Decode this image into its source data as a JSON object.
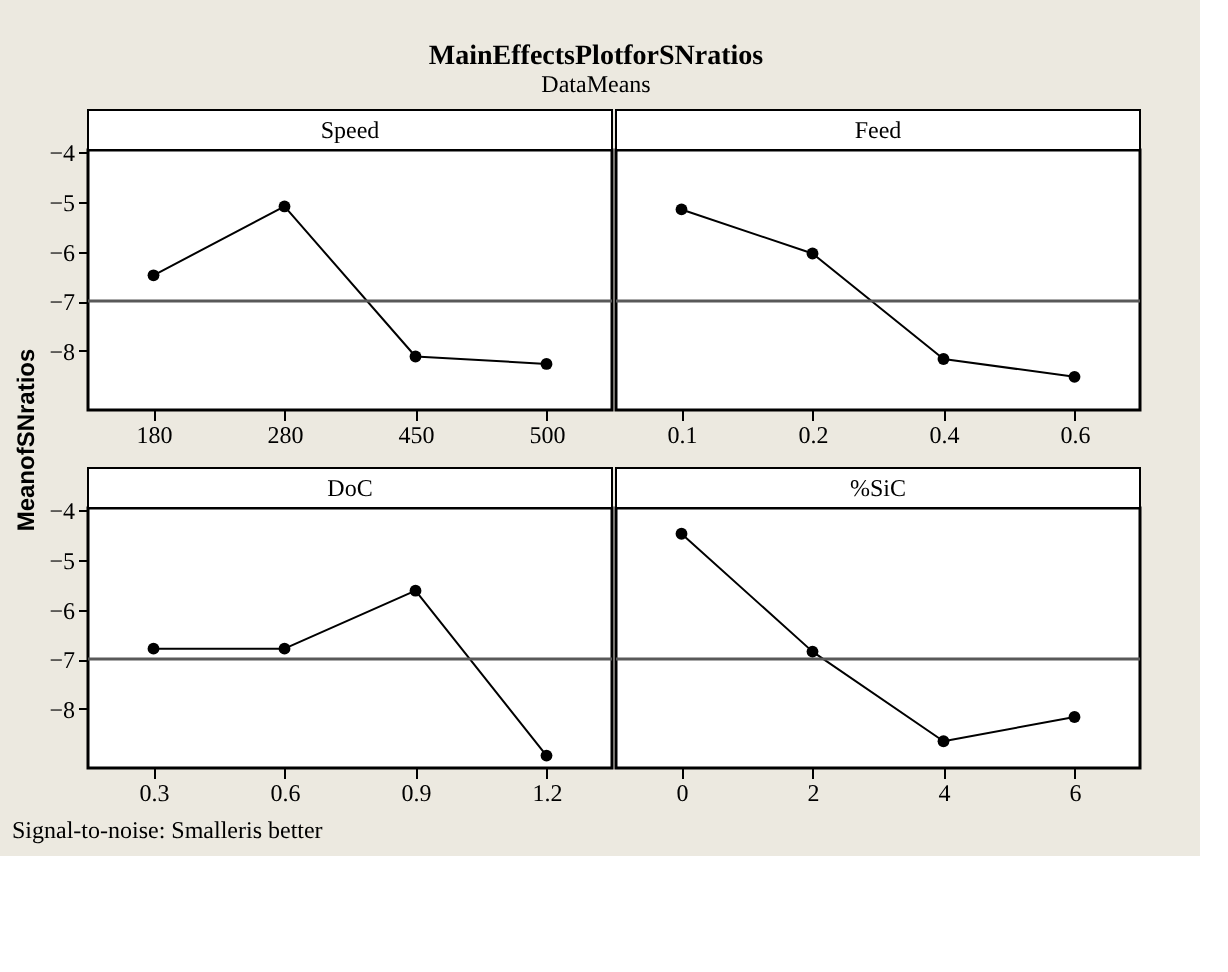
{
  "chart_data": [
    {
      "type": "other",
      "title": "MainEffectsPlotforSNratios",
      "subtitle": "DataMeans",
      "ylabel": "MeanofSNratios",
      "annotations": [
        "Signal-to-noise: Smalleris better"
      ]
    },
    {
      "type": "line",
      "title": "Speed",
      "categories": [
        "180",
        "280",
        "450",
        "500"
      ],
      "series": [
        {
          "color": "#000000",
          "values": [
            -6.48,
            -5.09,
            -8.12,
            -8.27
          ]
        }
      ],
      "ylim": [
        -9.2,
        -3.95
      ],
      "yticks": [
        -4,
        -5,
        -6,
        -7,
        -8
      ],
      "ref_lines": [
        {
          "axis": "y",
          "value": -7.0,
          "color": "#595959"
        }
      ],
      "marker": "circle",
      "line_style": "solid"
    },
    {
      "type": "line",
      "title": "Feed",
      "categories": [
        "0.1",
        "0.2",
        "0.4",
        "0.6"
      ],
      "series": [
        {
          "color": "#000000",
          "values": [
            -5.15,
            -6.04,
            -8.17,
            -8.53
          ]
        }
      ],
      "ylim": [
        -9.2,
        -3.95
      ],
      "ref_lines": [
        {
          "axis": "y",
          "value": -7.0,
          "color": "#595959"
        }
      ],
      "marker": "circle",
      "line_style": "solid",
      "tick_labels": "x"
    },
    {
      "type": "line",
      "title": "DoC",
      "categories": [
        "0.3",
        "0.6",
        "0.9",
        "1.2"
      ],
      "series": [
        {
          "color": "#000000",
          "values": [
            -6.79,
            -6.79,
            -5.62,
            -8.95
          ]
        }
      ],
      "ylim": [
        -9.2,
        -3.95
      ],
      "yticks": [
        -4,
        -5,
        -6,
        -7,
        -8
      ],
      "ref_lines": [
        {
          "axis": "y",
          "value": -7.0,
          "color": "#595959"
        }
      ],
      "marker": "circle",
      "line_style": "solid"
    },
    {
      "type": "line",
      "title": "%SiC",
      "categories": [
        "0",
        "2",
        "4",
        "6"
      ],
      "series": [
        {
          "color": "#000000",
          "values": [
            -4.47,
            -6.85,
            -8.66,
            -8.17
          ]
        }
      ],
      "ylim": [
        -9.2,
        -3.95
      ],
      "ref_lines": [
        {
          "axis": "y",
          "value": -7.0,
          "color": "#595959"
        }
      ],
      "marker": "circle",
      "line_style": "solid",
      "tick_labels": "x"
    }
  ]
}
